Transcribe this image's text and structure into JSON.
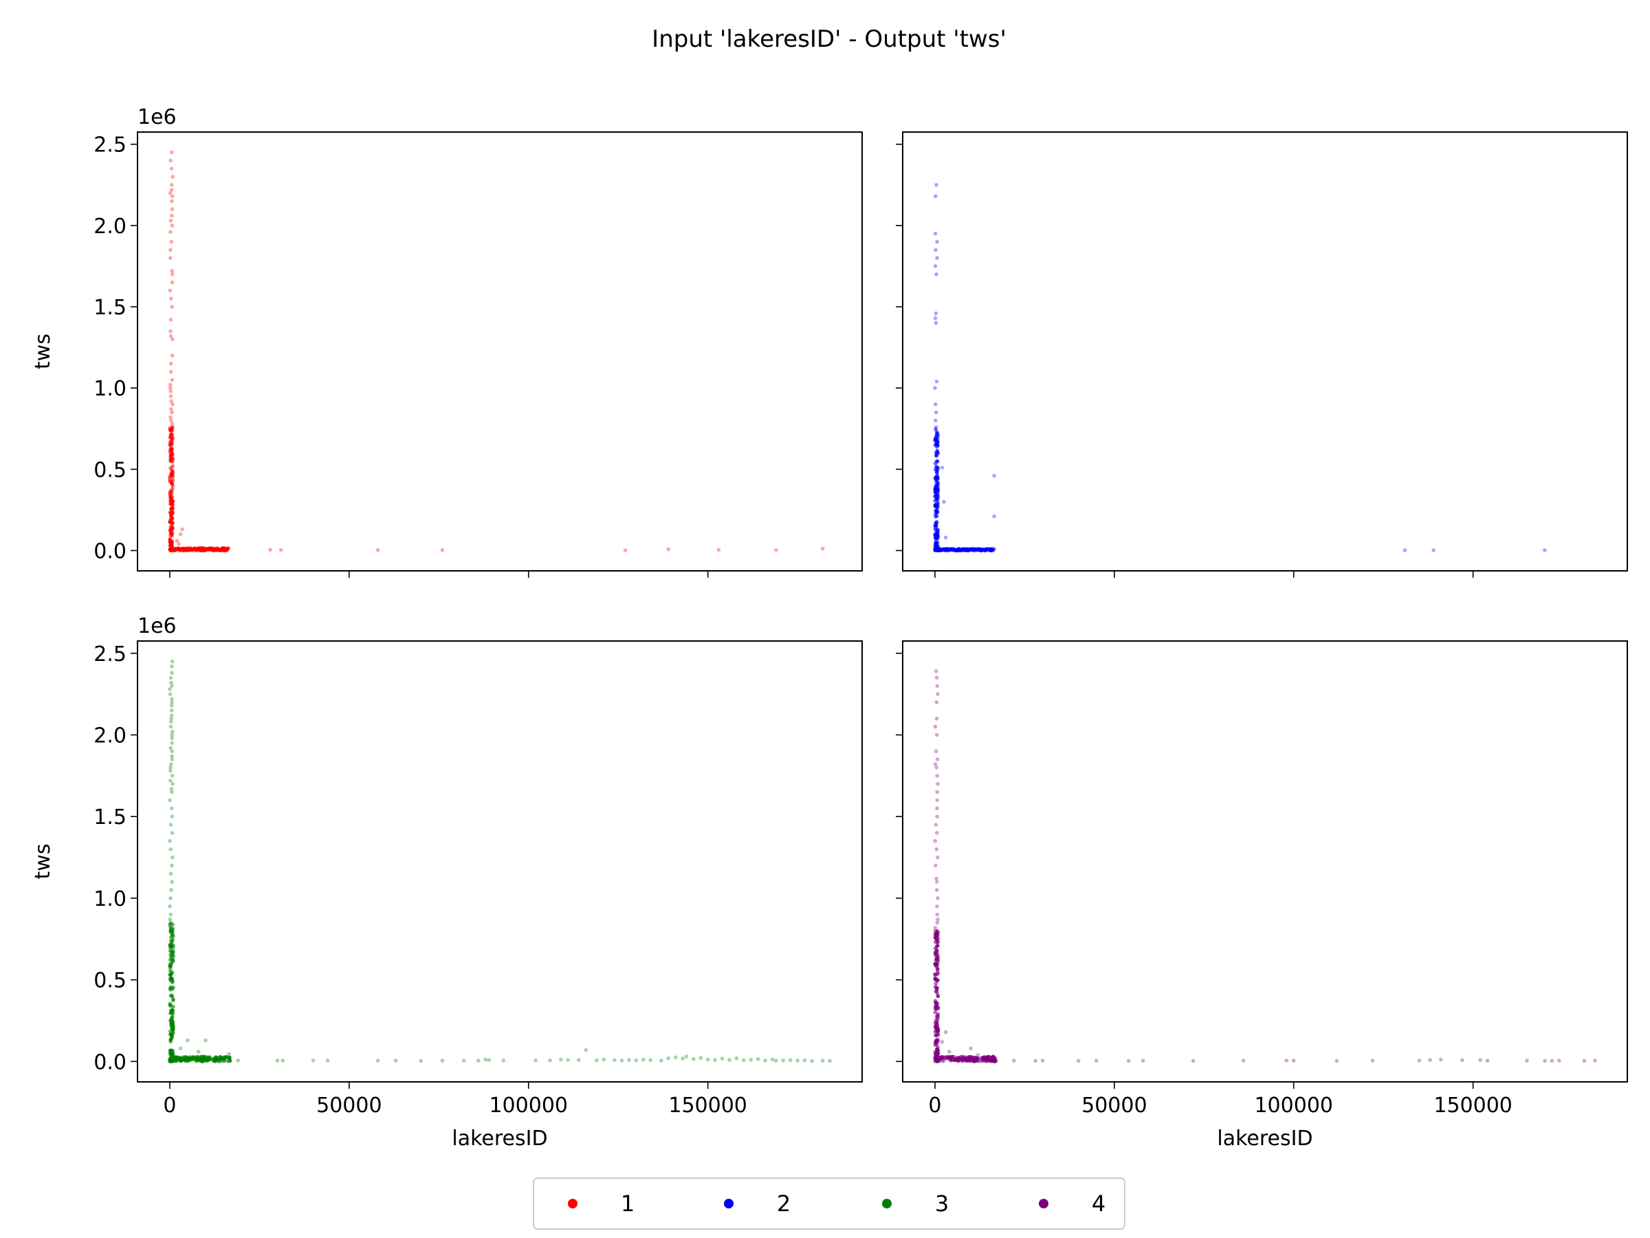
{
  "figure": {
    "title": "Input 'lakeresID' - Output 'tws'",
    "legend": {
      "placement": "bottom-center",
      "entries": [
        {
          "label": "1",
          "color": "#ff0000"
        },
        {
          "label": "2",
          "color": "#0000ff"
        },
        {
          "label": "3",
          "color": "#008000"
        },
        {
          "label": "4",
          "color": "#800080"
        }
      ]
    }
  },
  "chart_data": [
    {
      "type": "scatter",
      "series_label": "1",
      "color": "#ff0000",
      "xlabel": "",
      "ylabel": "tws",
      "offset_label": "1e6",
      "xlim": [
        -9000,
        193000
      ],
      "ylim": [
        -125000,
        2575000
      ],
      "x_ticks": [
        0,
        50000,
        100000,
        150000
      ],
      "x_tick_labels": [],
      "y_ticks": [
        0,
        500000,
        1000000,
        1500000,
        2000000,
        2500000
      ],
      "y_tick_labels": [
        "0.0",
        "0.5",
        "1.0",
        "1.5",
        "2.0",
        "2.5"
      ],
      "column_x_range": [
        0,
        800
      ],
      "column_y_points": [
        2450000,
        2400000,
        2350000,
        2300000,
        2250000,
        2220000,
        2200000,
        2180000,
        2150000,
        2100000,
        2060000,
        2030000,
        2000000,
        1960000,
        1900000,
        1850000,
        1800000,
        1720000,
        1700000,
        1650000,
        1600000,
        1550000,
        1500000,
        1420000,
        1350000,
        1320000,
        1300000,
        1200000,
        1150000,
        1100000,
        1050000,
        1020000,
        1000000,
        980000,
        950000,
        920000,
        900000,
        870000,
        850000,
        820000,
        800000,
        780000,
        760000,
        740000
      ],
      "dense_column": {
        "x_range": [
          0,
          900
        ],
        "y_range": [
          0,
          760000
        ]
      },
      "floor_cluster": {
        "x_range": [
          0,
          16500
        ],
        "y_range": [
          0,
          15000
        ]
      },
      "near_points": [
        [
          3000,
          100000
        ],
        [
          3500,
          130000
        ],
        [
          2000,
          60000
        ],
        [
          2500,
          40000
        ]
      ],
      "sparse_points": [
        [
          28000,
          5000
        ],
        [
          31000,
          4000
        ],
        [
          58000,
          3000
        ],
        [
          76000,
          3000
        ],
        [
          127000,
          2000
        ],
        [
          139000,
          8000
        ],
        [
          153000,
          5000
        ],
        [
          169000,
          4000
        ],
        [
          182000,
          12000
        ]
      ]
    },
    {
      "type": "scatter",
      "series_label": "2",
      "color": "#0000ff",
      "xlabel": "",
      "ylabel": "",
      "offset_label": "",
      "xlim": [
        -9000,
        193000
      ],
      "ylim": [
        -125000,
        2575000
      ],
      "x_ticks": [
        0,
        50000,
        100000,
        150000
      ],
      "x_tick_labels": [],
      "y_ticks": [
        0,
        500000,
        1000000,
        1500000,
        2000000,
        2500000
      ],
      "y_tick_labels": [],
      "column_x_range": [
        0,
        700
      ],
      "column_y_points": [
        2250000,
        2180000,
        1950000,
        1900000,
        1850000,
        1800000,
        1750000,
        1700000,
        1460000,
        1430000,
        1400000,
        1040000,
        1000000,
        900000,
        850000,
        800000,
        760000
      ],
      "dense_column": {
        "x_range": [
          0,
          900
        ],
        "y_range": [
          0,
          750000
        ]
      },
      "floor_cluster": {
        "x_range": [
          0,
          16500
        ],
        "y_range": [
          0,
          10000
        ]
      },
      "near_points": [
        [
          2000,
          510000
        ],
        [
          16500,
          460000
        ],
        [
          16500,
          210000
        ],
        [
          2500,
          300000
        ],
        [
          3000,
          80000
        ]
      ],
      "sparse_points": [
        [
          131000,
          2000
        ],
        [
          139000,
          2000
        ],
        [
          170000,
          2000
        ]
      ]
    },
    {
      "type": "scatter",
      "series_label": "3",
      "color": "#008000",
      "xlabel": "lakeresID",
      "ylabel": "tws",
      "offset_label": "1e6",
      "xlim": [
        -9000,
        193000
      ],
      "ylim": [
        -125000,
        2575000
      ],
      "x_ticks": [
        0,
        50000,
        100000,
        150000
      ],
      "x_tick_labels": [
        "0",
        "50000",
        "100000",
        "150000"
      ],
      "y_ticks": [
        0,
        500000,
        1000000,
        1500000,
        2000000,
        2500000
      ],
      "y_tick_labels": [
        "0.0",
        "0.5",
        "1.0",
        "1.5",
        "2.0",
        "2.5"
      ],
      "column_x_range": [
        0,
        800
      ],
      "column_y_points": [
        2450000,
        2420000,
        2380000,
        2350000,
        2320000,
        2300000,
        2280000,
        2250000,
        2220000,
        2200000,
        2180000,
        2150000,
        2120000,
        2100000,
        2080000,
        2050000,
        2020000,
        2000000,
        1980000,
        1950000,
        1920000,
        1900000,
        1870000,
        1850000,
        1820000,
        1800000,
        1780000,
        1750000,
        1720000,
        1700000,
        1670000,
        1650000,
        1600000,
        1550000,
        1500000,
        1450000,
        1400000,
        1350000,
        1300000,
        1250000,
        1200000,
        1150000,
        1100000,
        1050000,
        1000000,
        950000,
        900000,
        870000,
        850000,
        820000,
        800000
      ],
      "dense_column": {
        "x_range": [
          0,
          1000
        ],
        "y_range": [
          0,
          850000
        ]
      },
      "floor_cluster": {
        "x_range": [
          0,
          17000
        ],
        "y_range": [
          0,
          30000
        ]
      },
      "near_points": [
        [
          5000,
          130000
        ],
        [
          10000,
          130000
        ],
        [
          16500,
          45000
        ],
        [
          3000,
          80000
        ],
        [
          8000,
          60000
        ]
      ],
      "sparse_points": [
        [
          19000,
          6000
        ],
        [
          30000,
          5000
        ],
        [
          31500,
          5000
        ],
        [
          40000,
          6000
        ],
        [
          44000,
          6000
        ],
        [
          58000,
          5000
        ],
        [
          63000,
          5000
        ],
        [
          70000,
          4000
        ],
        [
          76000,
          5000
        ],
        [
          82000,
          6000
        ],
        [
          86000,
          5000
        ],
        [
          88000,
          12000
        ],
        [
          89000,
          8000
        ],
        [
          93000,
          6000
        ],
        [
          102000,
          7000
        ],
        [
          106000,
          6000
        ],
        [
          109000,
          12000
        ],
        [
          111000,
          9000
        ],
        [
          114000,
          10000
        ],
        [
          116000,
          70000
        ],
        [
          119000,
          7000
        ],
        [
          121000,
          12000
        ],
        [
          124000,
          8000
        ],
        [
          126000,
          6000
        ],
        [
          128000,
          9000
        ],
        [
          130000,
          7000
        ],
        [
          132000,
          11000
        ],
        [
          134000,
          8000
        ],
        [
          137000,
          6000
        ],
        [
          139000,
          20000
        ],
        [
          141000,
          25000
        ],
        [
          143000,
          18000
        ],
        [
          144000,
          30000
        ],
        [
          146000,
          15000
        ],
        [
          148000,
          22000
        ],
        [
          150000,
          12000
        ],
        [
          152000,
          9000
        ],
        [
          154000,
          18000
        ],
        [
          156000,
          10000
        ],
        [
          158000,
          20000
        ],
        [
          160000,
          8000
        ],
        [
          162000,
          10000
        ],
        [
          164000,
          15000
        ],
        [
          166000,
          6000
        ],
        [
          168000,
          12000
        ],
        [
          169000,
          5000
        ],
        [
          171000,
          6000
        ],
        [
          173000,
          8000
        ],
        [
          175000,
          5000
        ],
        [
          177000,
          7000
        ],
        [
          179000,
          3000
        ],
        [
          182000,
          5000
        ],
        [
          184000,
          4000
        ]
      ]
    },
    {
      "type": "scatter",
      "series_label": "4",
      "color": "#800080",
      "xlabel": "lakeresID",
      "ylabel": "",
      "offset_label": "",
      "xlim": [
        -9000,
        193000
      ],
      "ylim": [
        -125000,
        2575000
      ],
      "x_ticks": [
        0,
        50000,
        100000,
        150000
      ],
      "x_tick_labels": [
        "0",
        "50000",
        "100000",
        "150000"
      ],
      "y_ticks": [
        0,
        500000,
        1000000,
        1500000,
        2000000,
        2500000
      ],
      "y_tick_labels": [],
      "column_x_range": [
        0,
        800
      ],
      "column_y_points": [
        2390000,
        2350000,
        2300000,
        2250000,
        2200000,
        2100000,
        2050000,
        2000000,
        1900000,
        1850000,
        1820000,
        1800000,
        1750000,
        1700000,
        1650000,
        1600000,
        1550000,
        1500000,
        1450000,
        1400000,
        1350000,
        1300000,
        1250000,
        1200000,
        1120000,
        1100000,
        1050000,
        1000000,
        950000,
        900000,
        870000,
        850000,
        820000,
        800000
      ],
      "dense_column": {
        "x_range": [
          0,
          900
        ],
        "y_range": [
          0,
          800000
        ]
      },
      "floor_cluster": {
        "x_range": [
          0,
          17000
        ],
        "y_range": [
          0,
          30000
        ]
      },
      "near_points": [
        [
          3000,
          180000
        ],
        [
          2000,
          120000
        ],
        [
          4000,
          60000
        ],
        [
          10000,
          80000
        ],
        [
          12000,
          40000
        ]
      ],
      "sparse_points": [
        [
          22000,
          5000
        ],
        [
          28000,
          4000
        ],
        [
          30000,
          5000
        ],
        [
          40000,
          4000
        ],
        [
          45000,
          5000
        ],
        [
          54000,
          4000
        ],
        [
          58000,
          5000
        ],
        [
          72000,
          4000
        ],
        [
          86000,
          5000
        ],
        [
          98000,
          6000
        ],
        [
          100000,
          5000
        ],
        [
          112000,
          4000
        ],
        [
          122000,
          5000
        ],
        [
          135000,
          6000
        ],
        [
          138000,
          10000
        ],
        [
          141000,
          12000
        ],
        [
          147000,
          8000
        ],
        [
          152000,
          9000
        ],
        [
          154000,
          5000
        ],
        [
          165000,
          5000
        ],
        [
          170000,
          4000
        ],
        [
          172000,
          4000
        ],
        [
          174000,
          5000
        ],
        [
          181000,
          4000
        ],
        [
          184000,
          5000
        ]
      ]
    }
  ]
}
